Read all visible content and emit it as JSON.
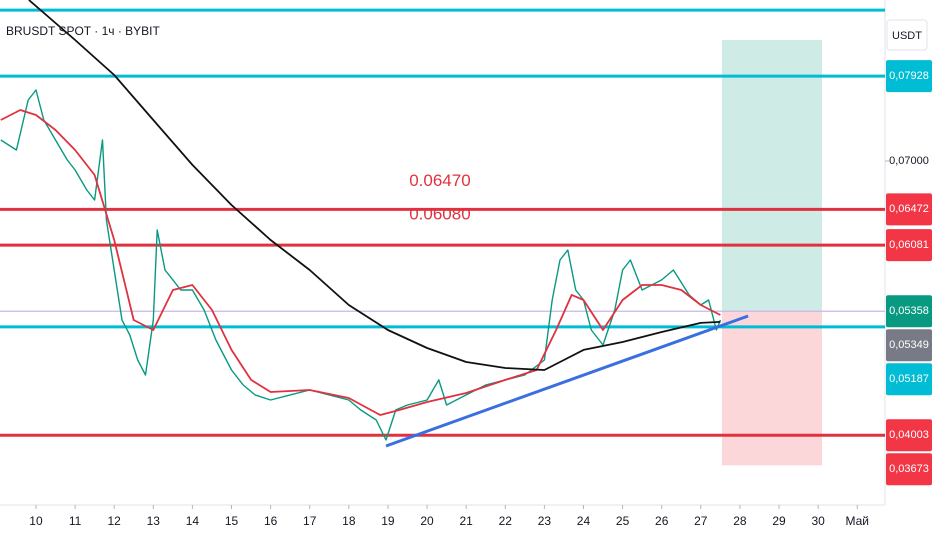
{
  "chart_data": {
    "type": "line",
    "title": "BRUSDT SPOT · 1ч · BYBIT",
    "currency": "USDT",
    "xlim": [
      9.08,
      31.71
    ],
    "ylim": [
      0.0324,
      0.0876
    ],
    "xticks": [
      10,
      11,
      12,
      13,
      14,
      15,
      16,
      17,
      18,
      19,
      20,
      21,
      22,
      23,
      24,
      25,
      26,
      27,
      28,
      29,
      30,
      {
        "value": 31,
        "label": "Май"
      }
    ],
    "yticks": [
      {
        "value": 0.07928,
        "label": "0,07928"
      },
      {
        "value": 0.07,
        "label": "0,07000"
      },
      {
        "value": 0.06472,
        "label": "0,06472"
      },
      {
        "value": 0.06081,
        "label": "0,06081"
      },
      {
        "value": 0.05358,
        "label": "0,05358"
      },
      {
        "value": 0.05349,
        "label": "0,05349"
      },
      {
        "value": 0.05187,
        "label": "0,05187"
      },
      {
        "value": 0.04003,
        "label": "0,04003"
      },
      {
        "value": 0.03673,
        "label": "0,03673"
      }
    ],
    "ytick_colors": [
      "#00bcd4",
      null,
      "#f23645",
      "#f23645",
      "#089981",
      "#787b86",
      "#00bcd4",
      "#f23645",
      "#f23645"
    ],
    "levels": [
      {
        "value": 0.0865,
        "color": "#00bcd4"
      },
      {
        "value": 0.07928,
        "color": "#00bcd4"
      },
      {
        "value": 0.06472,
        "color": "#e0313f"
      },
      {
        "value": 0.06081,
        "color": "#e0313f"
      },
      {
        "value": 0.05358,
        "color": "#c9b8e8"
      },
      {
        "value": 0.05187,
        "color": "#00bcd4"
      },
      {
        "value": 0.04003,
        "color": "#e0313f"
      }
    ],
    "annotations": [
      {
        "text": "0.06470",
        "x": 20.33,
        "value": 0.0647
      },
      {
        "text": "0.06080",
        "x": 20.33,
        "value": 0.0608
      }
    ],
    "trendline": {
      "color": "#3a6fe0",
      "x": [
        18.95,
        28.21
      ],
      "y": [
        0.03885,
        0.05306
      ]
    },
    "position": {
      "x": [
        27.54,
        30.1
      ],
      "target": 0.08323,
      "entry": 0.05358,
      "stop": 0.03673
    },
    "series": [
      {
        "name": "price",
        "color": "#089981",
        "x": [
          9.1,
          9.5,
          9.8,
          10,
          10.2,
          10.5,
          10.8,
          11,
          11.3,
          11.5,
          11.7,
          11.8,
          12,
          12.2,
          12.4,
          12.6,
          12.8,
          13,
          13.1,
          13.3,
          13.5,
          13.7,
          14,
          14.3,
          14.6,
          15,
          15.3,
          15.6,
          16,
          16.5,
          17,
          17.5,
          18,
          18.3,
          18.7,
          18.95,
          19.2,
          19.5,
          20,
          20.3,
          20.5,
          21,
          21.5,
          22,
          22.5,
          23,
          23.2,
          23.4,
          23.6,
          23.8,
          24,
          24.2,
          24.5,
          24.8,
          25,
          25.2,
          25.5,
          26,
          26.3,
          26.7,
          27,
          27.2,
          27.4,
          27.5
        ],
        "values": [
          0.0723,
          0.0712,
          0.07667,
          0.07776,
          0.07448,
          0.0723,
          0.07011,
          0.06902,
          0.06683,
          0.06574,
          0.0723,
          0.06355,
          0.05809,
          0.05262,
          0.05098,
          0.04825,
          0.04661,
          0.05262,
          0.06246,
          0.05809,
          0.057,
          0.0559,
          0.0559,
          0.05372,
          0.05044,
          0.04716,
          0.04552,
          0.04443,
          0.04388,
          0.04443,
          0.04497,
          0.04443,
          0.04388,
          0.04279,
          0.04169,
          0.03951,
          0.04279,
          0.04333,
          0.04388,
          0.04607,
          0.04333,
          0.04443,
          0.04552,
          0.04607,
          0.04661,
          0.04825,
          0.05481,
          0.05918,
          0.06027,
          0.0559,
          0.05481,
          0.05153,
          0.04989,
          0.05372,
          0.05809,
          0.05918,
          0.0559,
          0.057,
          0.05809,
          0.05536,
          0.05426,
          0.05481,
          0.05153,
          0.05262
        ]
      },
      {
        "name": "ema",
        "color": "#e0313f",
        "x": [
          9.1,
          9.6,
          10,
          10.5,
          11,
          11.5,
          12,
          12.5,
          13,
          13.5,
          14,
          14.5,
          15,
          15.5,
          16,
          17,
          18,
          18.8,
          19.3,
          20,
          21,
          22,
          22.8,
          23.3,
          23.7,
          24,
          24.5,
          25,
          25.5,
          26,
          26.5,
          27,
          27.5
        ],
        "values": [
          0.07448,
          0.07558,
          0.07503,
          0.07339,
          0.0712,
          0.06847,
          0.06137,
          0.05262,
          0.05153,
          0.0559,
          0.05645,
          0.05372,
          0.04935,
          0.04607,
          0.04475,
          0.04497,
          0.0441,
          0.04224,
          0.04279,
          0.04366,
          0.04464,
          0.04607,
          0.04716,
          0.05153,
          0.05536,
          0.05481,
          0.05153,
          0.05481,
          0.05645,
          0.05645,
          0.0559,
          0.05426,
          0.05317
        ]
      },
      {
        "name": "ma",
        "color": "#111111",
        "x": [
          9.82,
          11,
          12,
          13,
          14,
          15,
          16,
          17,
          18,
          19,
          20,
          21,
          22,
          23,
          23.5,
          24,
          25,
          26,
          27,
          27.5
        ],
        "values": [
          0.0876,
          0.08323,
          0.0794,
          0.07448,
          0.06957,
          0.06519,
          0.06137,
          0.05809,
          0.05426,
          0.05153,
          0.04956,
          0.04803,
          0.04738,
          0.04716,
          0.04825,
          0.04935,
          0.05022,
          0.05131,
          0.0523,
          0.05241
        ]
      }
    ]
  }
}
